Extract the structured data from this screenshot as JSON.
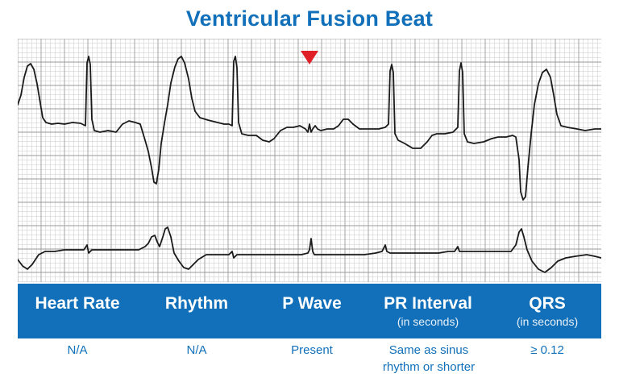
{
  "title": "Ventricular Fusion Beat",
  "marker_color": "#e02027",
  "accent_color": "#1170b9",
  "trace_color": "#1a1a1a",
  "grid_minor_color": "#c9c9c9",
  "grid_major_color": "#9a9a9a",
  "columns": [
    {
      "heading": "Heart Rate",
      "subheading": "",
      "value": "N/A"
    },
    {
      "heading": "Rhythm",
      "subheading": "",
      "value": "N/A"
    },
    {
      "heading": "P Wave",
      "subheading": "",
      "value": "Present"
    },
    {
      "heading": "PR Interval",
      "subheading": "(in seconds)",
      "value": "Same as sinus rhythm or shorter"
    },
    {
      "heading": "QRS",
      "subheading": "(in seconds)",
      "value": "≥ 0.12"
    }
  ]
}
